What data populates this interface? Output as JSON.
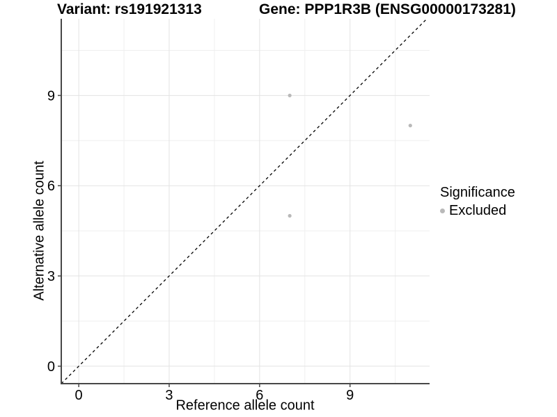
{
  "figure": {
    "title_left": "Variant: rs191921313",
    "title_right": "Gene: PPP1R3B (ENSG00000173281)"
  },
  "chart_data": {
    "type": "scatter",
    "title": "Variant: rs191921313   Gene: PPP1R3B (ENSG00000173281)",
    "xlabel": "Reference allele count",
    "ylabel": "Alternative allele count",
    "xlim": [
      -0.58,
      11.64
    ],
    "ylim": [
      -0.58,
      11.55
    ],
    "x_ticks": [
      0,
      3,
      6,
      9
    ],
    "y_ticks": [
      0,
      3,
      6,
      9
    ],
    "x_minor_gridlines": [
      1.5,
      4.5,
      7.5,
      10.5
    ],
    "y_minor_gridlines": [
      1.5,
      4.5,
      7.5,
      10.5
    ],
    "grid": true,
    "identity_line": {
      "slope": 1,
      "intercept": 0,
      "style": "dashed"
    },
    "series": [
      {
        "name": "Excluded",
        "color": "#b9b9b9",
        "points": [
          {
            "x": 7,
            "y": 9
          },
          {
            "x": 11,
            "y": 8
          },
          {
            "x": 7,
            "y": 5
          }
        ]
      }
    ],
    "legend": {
      "position": "right",
      "title": "Significance",
      "items": [
        {
          "label": "Excluded",
          "color": "#b9b9b9"
        }
      ]
    }
  },
  "colors": {
    "background": "#ffffff",
    "axis_line": "#474747",
    "grid_major": "#e3e3e3",
    "grid_minor": "#efefef",
    "identity_line": "#000000",
    "point": "#b9b9b9",
    "text": "#000000"
  }
}
